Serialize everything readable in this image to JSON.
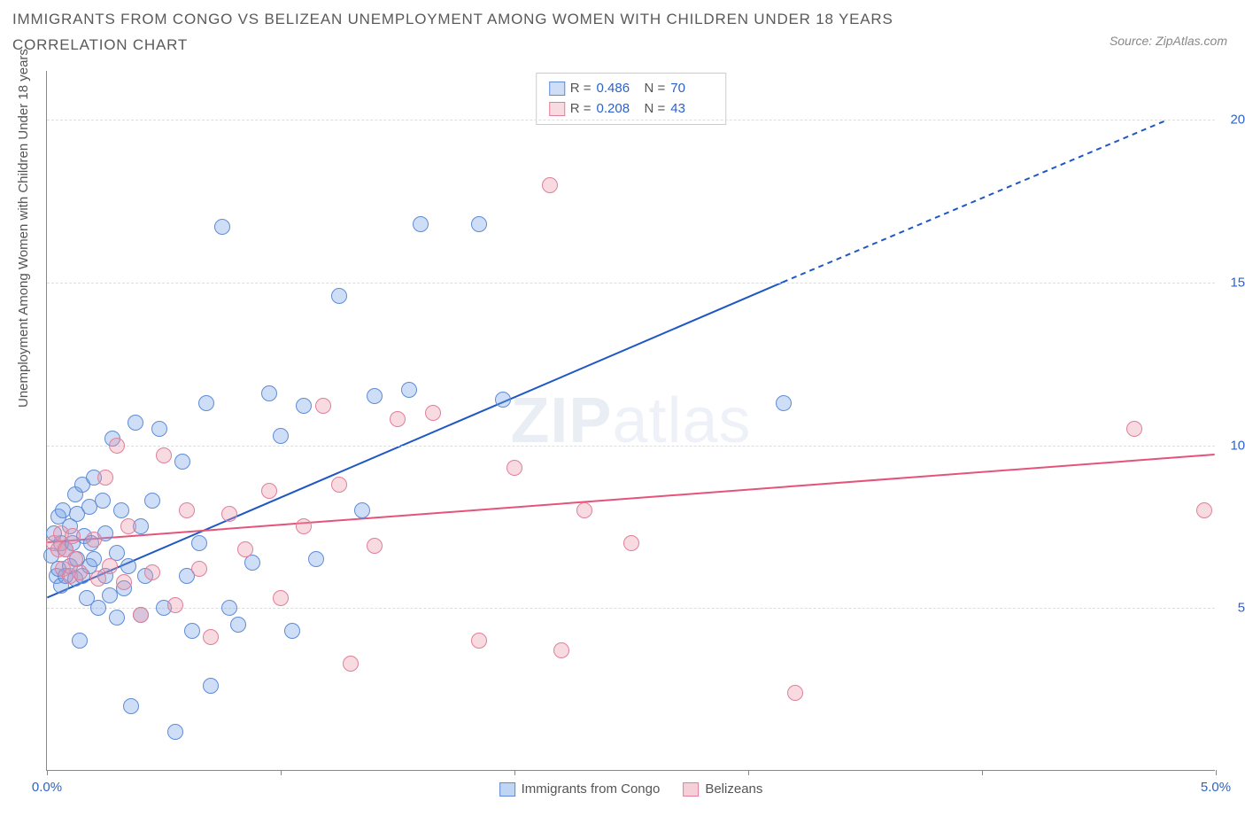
{
  "title": "IMMIGRANTS FROM CONGO VS BELIZEAN UNEMPLOYMENT AMONG WOMEN WITH CHILDREN UNDER 18 YEARS CORRELATION CHART",
  "source": "Source: ZipAtlas.com",
  "watermark_a": "ZIP",
  "watermark_b": "atlas",
  "y_axis_label": "Unemployment Among Women with Children Under 18 years",
  "chart": {
    "type": "scatter",
    "xlim": [
      0,
      5.0
    ],
    "ylim": [
      0,
      21.5
    ],
    "x_ticks": [
      0,
      1,
      2,
      3,
      4,
      5
    ],
    "x_tick_labels": {
      "0": "0.0%",
      "5": "5.0%"
    },
    "y_gridlines": [
      5,
      10,
      15,
      20
    ],
    "y_tick_labels": {
      "5": "5.0%",
      "10": "10.0%",
      "15": "15.0%",
      "20": "20.0%"
    },
    "background_color": "#ffffff",
    "grid_color": "#dddddd",
    "axis_color": "#888888",
    "tick_label_color": "#2b63c9",
    "marker_radius": 9,
    "marker_stroke_width": 1,
    "series": [
      {
        "name": "Immigrants from Congo",
        "fill": "rgba(115,160,230,0.35)",
        "stroke": "#5f8bd6",
        "R": "0.486",
        "N": "70",
        "trend": {
          "x1": 0,
          "y1": 5.3,
          "x2": 3.15,
          "y2": 15.0,
          "dash_extend_to_x": 4.8,
          "dash_extend_to_y": 20.0,
          "color": "#1f57c4",
          "width": 2
        },
        "points": [
          [
            0.02,
            6.6
          ],
          [
            0.03,
            7.3
          ],
          [
            0.04,
            6.0
          ],
          [
            0.05,
            7.8
          ],
          [
            0.05,
            6.2
          ],
          [
            0.06,
            7.0
          ],
          [
            0.06,
            5.7
          ],
          [
            0.07,
            8.0
          ],
          [
            0.08,
            6.8
          ],
          [
            0.08,
            6.0
          ],
          [
            0.1,
            7.5
          ],
          [
            0.1,
            6.3
          ],
          [
            0.11,
            7.0
          ],
          [
            0.12,
            8.5
          ],
          [
            0.12,
            5.9
          ],
          [
            0.13,
            6.5
          ],
          [
            0.13,
            7.9
          ],
          [
            0.14,
            4.0
          ],
          [
            0.15,
            8.8
          ],
          [
            0.15,
            6.0
          ],
          [
            0.16,
            7.2
          ],
          [
            0.17,
            5.3
          ],
          [
            0.18,
            8.1
          ],
          [
            0.18,
            6.3
          ],
          [
            0.19,
            7.0
          ],
          [
            0.2,
            9.0
          ],
          [
            0.2,
            6.5
          ],
          [
            0.22,
            5.0
          ],
          [
            0.24,
            8.3
          ],
          [
            0.25,
            7.3
          ],
          [
            0.25,
            6.0
          ],
          [
            0.27,
            5.4
          ],
          [
            0.28,
            10.2
          ],
          [
            0.3,
            4.7
          ],
          [
            0.3,
            6.7
          ],
          [
            0.32,
            8.0
          ],
          [
            0.33,
            5.6
          ],
          [
            0.35,
            6.3
          ],
          [
            0.36,
            2.0
          ],
          [
            0.38,
            10.7
          ],
          [
            0.4,
            7.5
          ],
          [
            0.4,
            4.8
          ],
          [
            0.42,
            6.0
          ],
          [
            0.45,
            8.3
          ],
          [
            0.48,
            10.5
          ],
          [
            0.5,
            5.0
          ],
          [
            0.55,
            1.2
          ],
          [
            0.58,
            9.5
          ],
          [
            0.6,
            6.0
          ],
          [
            0.62,
            4.3
          ],
          [
            0.65,
            7.0
          ],
          [
            0.68,
            11.3
          ],
          [
            0.7,
            2.6
          ],
          [
            0.75,
            16.7
          ],
          [
            0.78,
            5.0
          ],
          [
            0.82,
            4.5
          ],
          [
            0.88,
            6.4
          ],
          [
            0.95,
            11.6
          ],
          [
            1.0,
            10.3
          ],
          [
            1.05,
            4.3
          ],
          [
            1.1,
            11.2
          ],
          [
            1.15,
            6.5
          ],
          [
            1.25,
            14.6
          ],
          [
            1.35,
            8.0
          ],
          [
            1.4,
            11.5
          ],
          [
            1.55,
            11.7
          ],
          [
            1.6,
            16.8
          ],
          [
            1.85,
            16.8
          ],
          [
            1.95,
            11.4
          ],
          [
            3.15,
            11.3
          ]
        ]
      },
      {
        "name": "Belizeans",
        "fill": "rgba(235,150,170,0.35)",
        "stroke": "#e07f9b",
        "R": "0.208",
        "N": "43",
        "trend": {
          "x1": 0,
          "y1": 7.0,
          "x2": 5.0,
          "y2": 9.7,
          "color": "#e5537a",
          "width": 2
        },
        "points": [
          [
            0.03,
            7.0
          ],
          [
            0.05,
            6.8
          ],
          [
            0.06,
            7.3
          ],
          [
            0.07,
            6.2
          ],
          [
            0.08,
            6.8
          ],
          [
            0.1,
            6.0
          ],
          [
            0.11,
            7.2
          ],
          [
            0.12,
            6.5
          ],
          [
            0.14,
            6.1
          ],
          [
            0.2,
            7.1
          ],
          [
            0.22,
            5.9
          ],
          [
            0.25,
            9.0
          ],
          [
            0.27,
            6.3
          ],
          [
            0.3,
            10.0
          ],
          [
            0.33,
            5.8
          ],
          [
            0.35,
            7.5
          ],
          [
            0.4,
            4.8
          ],
          [
            0.45,
            6.1
          ],
          [
            0.5,
            9.7
          ],
          [
            0.55,
            5.1
          ],
          [
            0.6,
            8.0
          ],
          [
            0.65,
            6.2
          ],
          [
            0.7,
            4.1
          ],
          [
            0.78,
            7.9
          ],
          [
            0.85,
            6.8
          ],
          [
            0.95,
            8.6
          ],
          [
            1.0,
            5.3
          ],
          [
            1.1,
            7.5
          ],
          [
            1.18,
            11.2
          ],
          [
            1.25,
            8.8
          ],
          [
            1.3,
            3.3
          ],
          [
            1.4,
            6.9
          ],
          [
            1.5,
            10.8
          ],
          [
            1.65,
            11.0
          ],
          [
            1.85,
            4.0
          ],
          [
            2.0,
            9.3
          ],
          [
            2.15,
            18.0
          ],
          [
            2.2,
            3.7
          ],
          [
            2.3,
            8.0
          ],
          [
            2.5,
            7.0
          ],
          [
            3.2,
            2.4
          ],
          [
            4.65,
            10.5
          ],
          [
            4.95,
            8.0
          ]
        ]
      }
    ]
  },
  "stats_labels": {
    "R": "R =",
    "N": "N ="
  },
  "legend": [
    {
      "label": "Immigrants from Congo",
      "fill": "rgba(115,160,230,0.45)",
      "stroke": "#5f8bd6"
    },
    {
      "label": "Belizeans",
      "fill": "rgba(235,150,170,0.45)",
      "stroke": "#e07f9b"
    }
  ]
}
